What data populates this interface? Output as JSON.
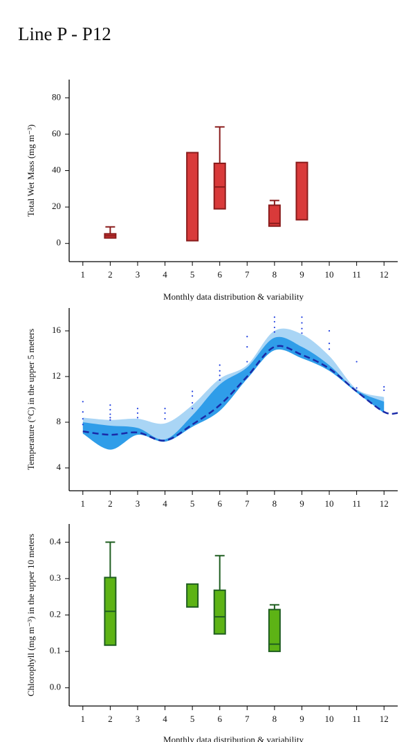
{
  "title": "Line P - P12",
  "chart_data": [
    {
      "type": "box",
      "ylabel": "Total Wet Mass (mg m⁻³)",
      "xlabel": "Monthly data distribution & variability",
      "xlim": [
        0.5,
        12.5
      ],
      "xticks": [
        1,
        2,
        3,
        4,
        5,
        6,
        7,
        8,
        9,
        10,
        11,
        12
      ],
      "ylim": [
        -10,
        90
      ],
      "yticks": [
        0,
        20,
        40,
        60,
        80
      ],
      "fill": "#d93a3a",
      "stroke": "#8a1c1c",
      "boxes": {
        "x": [
          2,
          5,
          6,
          8,
          9
        ],
        "min": [
          null,
          null,
          null,
          null,
          null
        ],
        "q1": [
          3,
          1.5,
          19,
          9.5,
          13
        ],
        "median": [
          4.2,
          null,
          31,
          11,
          null
        ],
        "q3": [
          5.3,
          49.9,
          44,
          21,
          44.5
        ],
        "max": [
          9.1,
          null,
          64,
          23.6,
          null
        ]
      }
    },
    {
      "type": "line",
      "ylabel": "Temperature (°C) in the upper 5 meters",
      "xlim": [
        0.5,
        12.5
      ],
      "xticks": [
        1,
        2,
        3,
        4,
        5,
        6,
        7,
        8,
        9,
        10,
        11,
        12
      ],
      "ylim": [
        2,
        18
      ],
      "yticks": [
        4,
        8,
        12,
        16
      ],
      "x": [
        1,
        2,
        3,
        4,
        5,
        6,
        7,
        8,
        9,
        10,
        11,
        12,
        12.5
      ],
      "bands": [
        {
          "color": "#a9d5f5",
          "low": [
            7.5,
            7.6,
            7.4,
            6.5,
            8.4,
            11.2,
            12.5,
            15.0,
            14.4,
            13.0,
            10.8,
            9.5,
            null
          ],
          "high": [
            8.4,
            8.2,
            8.3,
            7.9,
            9.5,
            11.8,
            13.0,
            16.0,
            15.7,
            13.8,
            10.9,
            10.2,
            null
          ]
        },
        {
          "color": "#2f9de9",
          "low": [
            7.0,
            5.6,
            6.9,
            6.3,
            7.6,
            9.0,
            11.8,
            14.3,
            13.6,
            12.5,
            10.6,
            8.8,
            null
          ],
          "high": [
            8.0,
            7.7,
            7.5,
            6.5,
            8.6,
            11.3,
            12.8,
            15.4,
            14.6,
            13.0,
            10.8,
            9.8,
            null
          ]
        }
      ],
      "series": [
        {
          "color": "#1a2aa8",
          "dash": true,
          "values": [
            7.2,
            6.9,
            7.1,
            6.4,
            7.8,
            9.5,
            12.0,
            14.6,
            13.9,
            12.7,
            10.7,
            8.9,
            8.8
          ]
        }
      ],
      "points": {
        "color": "#2040e0",
        "x": [
          1,
          1,
          1,
          1,
          2,
          2,
          2,
          2,
          2,
          3,
          3,
          3,
          4,
          4,
          4,
          5,
          5,
          5,
          5,
          6,
          6,
          6,
          6,
          7,
          7,
          7,
          8,
          8,
          8,
          8,
          9,
          9,
          9,
          9,
          10,
          10,
          10,
          11,
          11,
          12,
          12
        ],
        "y": [
          9.8,
          8.9,
          8.3,
          7.8,
          9.5,
          9.1,
          8.7,
          8.4,
          8.2,
          9.2,
          8.8,
          8.4,
          9.2,
          8.8,
          8.3,
          10.7,
          10.3,
          9.7,
          9.2,
          13.0,
          12.5,
          12.1,
          11.7,
          15.5,
          14.6,
          13.3,
          17.2,
          16.8,
          16.3,
          15.9,
          17.2,
          16.7,
          16.2,
          15.8,
          16.0,
          14.9,
          14.4,
          13.3,
          11.0,
          11.1,
          10.8
        ]
      }
    },
    {
      "type": "box",
      "ylabel": "Chlorophyll (mg m⁻³) in the upper 10 meters",
      "xlabel": "Monthly data distribution & variability",
      "xlim": [
        0.5,
        12.5
      ],
      "xticks": [
        1,
        2,
        3,
        4,
        5,
        6,
        7,
        8,
        9,
        10,
        11,
        12
      ],
      "ylim": [
        -0.05,
        0.45
      ],
      "yticks": [
        {
          "value": 0,
          "label": "0.0"
        },
        0.1,
        0.2,
        0.3,
        0.4
      ],
      "fill": "#5db315",
      "stroke": "#1f5e20",
      "boxes": {
        "x": [
          2,
          5,
          6,
          8
        ],
        "min": [
          null,
          null,
          null,
          null
        ],
        "q1": [
          0.117,
          0.222,
          0.148,
          0.1
        ],
        "median": [
          0.21,
          null,
          0.195,
          0.12
        ],
        "q3": [
          0.303,
          0.285,
          0.268,
          0.215
        ],
        "max": [
          0.4,
          null,
          0.363,
          0.228
        ]
      }
    }
  ]
}
